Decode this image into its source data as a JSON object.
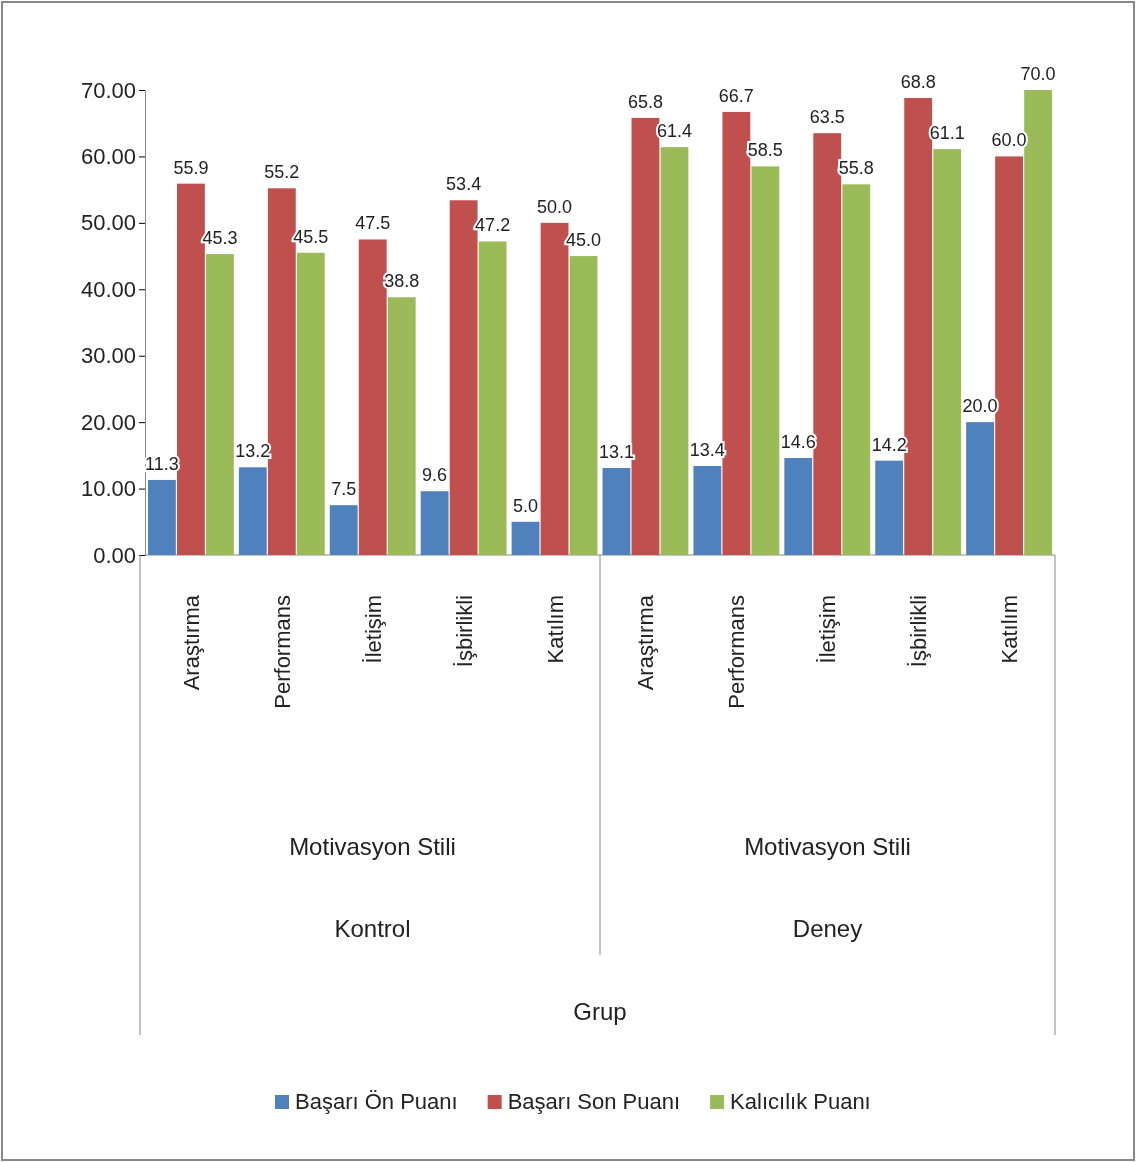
{
  "chart_data": {
    "type": "bar",
    "categories": [
      "Araştırma",
      "Performans",
      "İletişim",
      "İşbirlikli",
      "Katılım",
      "Araştırma",
      "Performans",
      "İletişim",
      "İşbirlikli",
      "Katılım"
    ],
    "series": [
      {
        "name": "Başarı Ön Puanı",
        "color": "#4f81bd",
        "values": [
          11.3,
          13.2,
          7.5,
          9.6,
          5.0,
          13.1,
          13.4,
          14.6,
          14.2,
          20.0
        ],
        "value_labels": [
          "11.3",
          "13.2",
          "7.5",
          "9.6",
          "5.0",
          "13.1",
          "13.4",
          "14.6",
          "14.2",
          "20.0"
        ]
      },
      {
        "name": "Başarı Son Puanı",
        "color": "#c0504d",
        "values": [
          55.9,
          55.2,
          47.5,
          53.4,
          50.0,
          65.8,
          66.7,
          63.5,
          68.8,
          60.0
        ],
        "value_labels": [
          "55.9",
          "55.2",
          "47.5",
          "53.4",
          "50.0",
          "65.8",
          "66.7",
          "63.5",
          "68.8",
          "60.0"
        ]
      },
      {
        "name": "Kalıcılık Puanı",
        "color": "#9bbb59",
        "values": [
          45.3,
          45.5,
          38.8,
          47.2,
          45.0,
          61.4,
          58.5,
          55.8,
          61.1,
          70.0
        ],
        "value_labels": [
          "45.3",
          "45.5",
          "38.8",
          "47.2",
          "45.0",
          "61.4",
          "58.5",
          "55.8",
          "61.1",
          "70.0"
        ]
      }
    ],
    "annotations": [
      "Motivasyon Stili",
      "Motivasyon Stili",
      "Kontrol",
      "Deney",
      "Grup"
    ],
    "ylim": [
      0,
      70
    ],
    "yticks": [
      {
        "value": 0,
        "label": "0.00"
      },
      {
        "value": 10,
        "label": "10.00"
      },
      {
        "value": 20,
        "label": "20.00"
      },
      {
        "value": 30,
        "label": "30.00"
      },
      {
        "value": 40,
        "label": "40.00"
      },
      {
        "value": 50,
        "label": "50.00"
      },
      {
        "value": 60,
        "label": "60.00"
      },
      {
        "value": 70,
        "label": "70.00"
      }
    ],
    "grid": false,
    "legend": "bottom"
  }
}
